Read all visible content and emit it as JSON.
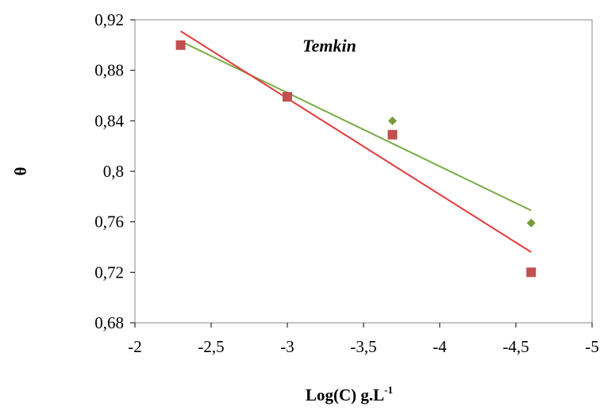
{
  "chart_data": {
    "type": "scatter",
    "title": "",
    "annotation": "Temkin",
    "xlabel": "Log(C) g.L",
    "xlabel_superscript": "-1",
    "ylabel": "θ",
    "xlim": [
      -2,
      -5
    ],
    "ylim": [
      0.68,
      0.92
    ],
    "x_ticks": [
      -2,
      -2.5,
      -3,
      -3.5,
      -4,
      -4.5,
      -5
    ],
    "x_tick_labels": [
      "-2",
      "-2,5",
      "-3",
      "-3,5",
      "-4",
      "-4,5",
      "-5"
    ],
    "y_ticks": [
      0.68,
      0.72,
      0.76,
      0.8,
      0.84,
      0.88,
      0.92
    ],
    "y_tick_labels": [
      "0,68",
      "0,72",
      "0,76",
      "0,8",
      "0,84",
      "0,88",
      "0,92"
    ],
    "grid": false,
    "legend": "none",
    "series": [
      {
        "marker": "diamond",
        "color": "#7a9a3a",
        "line_color": "#7aaa46",
        "x": [
          -2.3,
          -3.0,
          -3.69,
          -4.6
        ],
        "y": [
          0.9,
          0.86,
          0.84,
          0.759
        ],
        "trendline": {
          "x": [
            -2.3,
            -4.6
          ],
          "y": [
            0.903,
            0.769
          ]
        }
      },
      {
        "marker": "square",
        "color": "#c0504d",
        "line_color": "#e23a3a",
        "x": [
          -2.3,
          -3.0,
          -3.69,
          -4.6
        ],
        "y": [
          0.9,
          0.859,
          0.829,
          0.72
        ],
        "trendline": {
          "x": [
            -2.3,
            -4.6
          ],
          "y": [
            0.911,
            0.736
          ]
        }
      }
    ]
  }
}
